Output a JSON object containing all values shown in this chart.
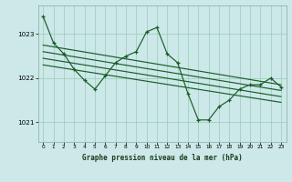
{
  "title": "Graphe pression niveau de la mer (hPa)",
  "bg_color": "#cce8e8",
  "plot_bg_color": "#cce8e8",
  "grid_color": "#99ccbb",
  "line_color": "#1a5c28",
  "xlim": [
    -0.5,
    23.5
  ],
  "ylim": [
    1020.55,
    1023.65
  ],
  "yticks": [
    1021,
    1022,
    1023
  ],
  "xticks": [
    0,
    1,
    2,
    3,
    4,
    5,
    6,
    7,
    8,
    9,
    10,
    11,
    12,
    13,
    14,
    15,
    16,
    17,
    18,
    19,
    20,
    21,
    22,
    23
  ],
  "main_line": [
    1023.4,
    1022.8,
    1022.55,
    1022.2,
    1021.95,
    1021.75,
    1022.05,
    1022.35,
    1022.5,
    1022.6,
    1023.05,
    1023.15,
    1022.55,
    1022.35,
    1021.65,
    1021.05,
    1021.05,
    1021.35,
    1021.5,
    1021.75,
    1021.85,
    1021.85,
    1022.0,
    1021.8
  ],
  "trend_lines": [
    [
      1022.75,
      1021.85
    ],
    [
      1022.6,
      1021.72
    ],
    [
      1022.45,
      1021.58
    ],
    [
      1022.3,
      1021.45
    ]
  ]
}
